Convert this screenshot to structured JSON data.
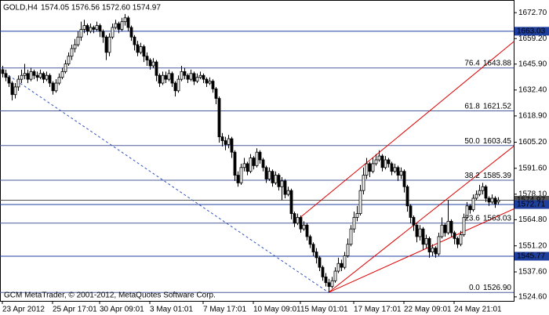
{
  "chart_data": {
    "type": "candlestick",
    "title": "GOLD,H4",
    "subtitle": "1574.05 1576.56 1572.60 1574.97",
    "footer": "GCM MetaTrader, © 2001-2012, MetaQuotes Software Corp.",
    "ylim": [
      1522.5,
      1679.3
    ],
    "yticks": [
      {
        "value": 1672.7,
        "label": "1672.70"
      },
      {
        "value": 1659.2,
        "label": "1659.20"
      },
      {
        "value": 1645.9,
        "label": "1645.90"
      },
      {
        "value": 1632.4,
        "label": "1632.40"
      },
      {
        "value": 1618.9,
        "label": "1618.90"
      },
      {
        "value": 1605.2,
        "label": "1605.20"
      },
      {
        "value": 1591.6,
        "label": "1591.60"
      },
      {
        "value": 1578.1,
        "label": "1578.10"
      },
      {
        "value": 1564.8,
        "label": "1564.80"
      },
      {
        "value": 1551.2,
        "label": "1551.20"
      },
      {
        "value": 1537.6,
        "label": "1537.60"
      },
      {
        "value": 1524.6,
        "label": "1524.60"
      }
    ],
    "xlabels": [
      {
        "index": 0,
        "label": "23 Apr 2012"
      },
      {
        "index": 16,
        "label": "25 Apr 17:01"
      },
      {
        "index": 31,
        "label": "30 Apr 09:01"
      },
      {
        "index": 47,
        "label": "3 May 01:01"
      },
      {
        "index": 64,
        "label": "7 May 17:01"
      },
      {
        "index": 80,
        "label": "10 May 09:01"
      },
      {
        "index": 95,
        "label": "15 May 01:01"
      },
      {
        "index": 112,
        "label": "17 May 17:01"
      },
      {
        "index": 128,
        "label": "22 May 09:01"
      },
      {
        "index": 144,
        "label": "24 May 21:01"
      }
    ],
    "up_color": "#ffffff",
    "down_color": "#000000",
    "ohlc": [
      [
        1643,
        1645,
        1639,
        1641
      ],
      [
        1641,
        1643,
        1637,
        1639
      ],
      [
        1639,
        1640,
        1634,
        1636
      ],
      [
        1636,
        1637,
        1627,
        1630
      ],
      [
        1630,
        1636,
        1628,
        1634
      ],
      [
        1634,
        1640,
        1632,
        1638
      ],
      [
        1638,
        1643,
        1636,
        1640
      ],
      [
        1640,
        1646,
        1638,
        1641
      ],
      [
        1641,
        1643,
        1636,
        1638
      ],
      [
        1638,
        1644,
        1637,
        1642
      ],
      [
        1642,
        1643,
        1638,
        1640
      ],
      [
        1640,
        1642,
        1637,
        1639
      ],
      [
        1639,
        1643,
        1638,
        1641
      ],
      [
        1641,
        1642,
        1636,
        1638
      ],
      [
        1638,
        1642,
        1637,
        1640
      ],
      [
        1640,
        1641,
        1634,
        1636
      ],
      [
        1636,
        1637,
        1630,
        1632
      ],
      [
        1632,
        1638,
        1631,
        1636
      ],
      [
        1636,
        1641,
        1635,
        1639
      ],
      [
        1639,
        1644,
        1638,
        1642
      ],
      [
        1642,
        1648,
        1641,
        1646
      ],
      [
        1646,
        1652,
        1645,
        1650
      ],
      [
        1650,
        1656,
        1648,
        1654
      ],
      [
        1654,
        1659,
        1652,
        1656
      ],
      [
        1656,
        1663,
        1655,
        1660
      ],
      [
        1660,
        1668,
        1658,
        1664
      ],
      [
        1664,
        1669,
        1662,
        1666
      ],
      [
        1666,
        1667,
        1661,
        1663
      ],
      [
        1663,
        1667,
        1662,
        1665
      ],
      [
        1665,
        1666,
        1662,
        1664
      ],
      [
        1664,
        1668,
        1663,
        1666
      ],
      [
        1666,
        1667,
        1660,
        1663
      ],
      [
        1663,
        1664,
        1657,
        1660
      ],
      [
        1660,
        1661,
        1648,
        1652
      ],
      [
        1652,
        1662,
        1650,
        1660
      ],
      [
        1660,
        1667,
        1659,
        1665
      ],
      [
        1665,
        1669,
        1664,
        1667
      ],
      [
        1667,
        1668,
        1662,
        1664
      ],
      [
        1664,
        1670,
        1663,
        1668
      ],
      [
        1668,
        1672,
        1666,
        1670
      ],
      [
        1670,
        1671,
        1663,
        1665
      ],
      [
        1665,
        1666,
        1658,
        1660
      ],
      [
        1660,
        1661,
        1653,
        1656
      ],
      [
        1656,
        1658,
        1650,
        1652
      ],
      [
        1652,
        1657,
        1651,
        1655
      ],
      [
        1655,
        1656,
        1647,
        1650
      ],
      [
        1650,
        1652,
        1645,
        1648
      ],
      [
        1648,
        1649,
        1643,
        1645
      ],
      [
        1645,
        1649,
        1644,
        1647
      ],
      [
        1647,
        1648,
        1637,
        1640
      ],
      [
        1640,
        1641,
        1634,
        1636
      ],
      [
        1636,
        1642,
        1635,
        1640
      ],
      [
        1640,
        1642,
        1636,
        1638
      ],
      [
        1638,
        1643,
        1637,
        1641
      ],
      [
        1641,
        1642,
        1634,
        1636
      ],
      [
        1636,
        1637,
        1629,
        1632
      ],
      [
        1632,
        1640,
        1631,
        1638
      ],
      [
        1638,
        1645,
        1637,
        1642
      ],
      [
        1642,
        1644,
        1638,
        1640
      ],
      [
        1640,
        1641,
        1636,
        1638
      ],
      [
        1638,
        1643,
        1637,
        1641
      ],
      [
        1641,
        1642,
        1635,
        1637
      ],
      [
        1637,
        1641,
        1636,
        1639
      ],
      [
        1639,
        1642,
        1638,
        1640
      ],
      [
        1640,
        1641,
        1636,
        1638
      ],
      [
        1638,
        1639,
        1634,
        1636
      ],
      [
        1636,
        1639,
        1635,
        1637
      ],
      [
        1637,
        1638,
        1631,
        1633
      ],
      [
        1633,
        1634,
        1625,
        1628
      ],
      [
        1628,
        1629,
        1605,
        1608
      ],
      [
        1608,
        1610,
        1603,
        1606
      ],
      [
        1606,
        1608,
        1601,
        1604
      ],
      [
        1604,
        1609,
        1602,
        1607
      ],
      [
        1607,
        1608,
        1597,
        1600
      ],
      [
        1600,
        1601,
        1585,
        1588
      ],
      [
        1588,
        1590,
        1582,
        1584
      ],
      [
        1584,
        1594,
        1583,
        1592
      ],
      [
        1592,
        1597,
        1590,
        1594
      ],
      [
        1594,
        1595,
        1588,
        1590
      ],
      [
        1590,
        1599,
        1589,
        1597
      ],
      [
        1597,
        1598,
        1591,
        1593
      ],
      [
        1593,
        1602,
        1592,
        1600
      ],
      [
        1600,
        1601,
        1594,
        1596
      ],
      [
        1596,
        1597,
        1590,
        1592
      ],
      [
        1592,
        1593,
        1584,
        1586
      ],
      [
        1586,
        1592,
        1585,
        1590
      ],
      [
        1590,
        1591,
        1582,
        1584
      ],
      [
        1584,
        1590,
        1583,
        1588
      ],
      [
        1588,
        1589,
        1580,
        1582
      ],
      [
        1582,
        1587,
        1575,
        1585
      ],
      [
        1585,
        1586,
        1576,
        1578
      ],
      [
        1578,
        1582,
        1577,
        1580
      ],
      [
        1580,
        1581,
        1565,
        1568
      ],
      [
        1568,
        1569,
        1561,
        1563
      ],
      [
        1563,
        1568,
        1562,
        1566
      ],
      [
        1566,
        1567,
        1558,
        1560
      ],
      [
        1560,
        1564,
        1559,
        1562
      ],
      [
        1562,
        1563,
        1554,
        1556
      ],
      [
        1556,
        1557,
        1550,
        1552
      ],
      [
        1552,
        1553,
        1546,
        1548
      ],
      [
        1548,
        1550,
        1542,
        1545
      ],
      [
        1545,
        1546,
        1538,
        1540
      ],
      [
        1540,
        1541,
        1533,
        1535
      ],
      [
        1535,
        1537,
        1530,
        1532
      ],
      [
        1532,
        1534,
        1526.9,
        1530
      ],
      [
        1530,
        1535,
        1529,
        1533
      ],
      [
        1533,
        1540,
        1532,
        1538
      ],
      [
        1538,
        1545,
        1537,
        1542
      ],
      [
        1542,
        1544,
        1538,
        1540
      ],
      [
        1540,
        1548,
        1539,
        1546
      ],
      [
        1546,
        1555,
        1545,
        1552
      ],
      [
        1552,
        1562,
        1551,
        1560
      ],
      [
        1560,
        1569,
        1558,
        1566
      ],
      [
        1566,
        1572,
        1564,
        1568
      ],
      [
        1568,
        1583,
        1567,
        1580
      ],
      [
        1580,
        1592,
        1578,
        1588
      ],
      [
        1588,
        1597,
        1586,
        1594
      ],
      [
        1594,
        1595,
        1587,
        1590
      ],
      [
        1590,
        1597,
        1589,
        1594
      ],
      [
        1594,
        1599,
        1593,
        1596
      ],
      [
        1596,
        1601,
        1595,
        1598
      ],
      [
        1598,
        1599,
        1590,
        1592
      ],
      [
        1592,
        1598,
        1591,
        1596
      ],
      [
        1596,
        1597,
        1592,
        1594
      ],
      [
        1594,
        1595,
        1588,
        1590
      ],
      [
        1590,
        1594,
        1589,
        1592
      ],
      [
        1592,
        1593,
        1585,
        1588
      ],
      [
        1588,
        1592,
        1586,
        1590
      ],
      [
        1590,
        1591,
        1579,
        1582
      ],
      [
        1582,
        1583,
        1569,
        1572
      ],
      [
        1572,
        1573,
        1563,
        1566
      ],
      [
        1566,
        1567,
        1559,
        1562
      ],
      [
        1562,
        1563,
        1553,
        1556
      ],
      [
        1556,
        1562,
        1554,
        1560
      ],
      [
        1560,
        1561,
        1549,
        1552
      ],
      [
        1552,
        1557,
        1550,
        1555
      ],
      [
        1555,
        1556,
        1545,
        1548
      ],
      [
        1548,
        1552,
        1546,
        1550
      ],
      [
        1550,
        1551,
        1545,
        1547
      ],
      [
        1547,
        1558,
        1546,
        1556
      ],
      [
        1556,
        1566,
        1555,
        1562
      ],
      [
        1562,
        1563,
        1556,
        1558
      ],
      [
        1558,
        1575,
        1557,
        1564
      ],
      [
        1564,
        1565,
        1556,
        1558
      ],
      [
        1558,
        1559,
        1552,
        1555
      ],
      [
        1555,
        1556,
        1550,
        1552
      ],
      [
        1552,
        1559,
        1551,
        1557
      ],
      [
        1557,
        1568,
        1556,
        1566
      ],
      [
        1566,
        1574,
        1565,
        1572
      ],
      [
        1572,
        1573,
        1568,
        1570
      ],
      [
        1570,
        1578,
        1569,
        1576
      ],
      [
        1576,
        1580,
        1575,
        1578
      ],
      [
        1578,
        1583,
        1577,
        1580
      ],
      [
        1580,
        1584,
        1578,
        1582
      ],
      [
        1582,
        1583,
        1574,
        1576
      ],
      [
        1576,
        1577,
        1572,
        1574
      ],
      [
        1574,
        1578,
        1573,
        1576
      ],
      [
        1576,
        1577,
        1571,
        1573
      ],
      [
        1574.05,
        1576.56,
        1572.6,
        1574.97
      ]
    ],
    "fibo_color": "#4a5a9a",
    "fibo_levels": [
      {
        "level": "76.4",
        "price": 1643.88
      },
      {
        "level": "61.8",
        "price": 1621.52
      },
      {
        "level": "50.0",
        "price": 1603.45
      },
      {
        "level": "38.2",
        "price": 1585.39
      },
      {
        "level": "23.6",
        "price": 1563.03
      },
      {
        "level": "0.0",
        "price": {
          "value": 1526.9,
          "label": "1526.90"
        }
      }
    ],
    "price_levels": [
      {
        "value": 1663.03,
        "color": "#1f3f9f"
      },
      {
        "value": 1574.97,
        "color": "#555555"
      },
      {
        "value": 1572.71,
        "color": "#1f3f9f"
      },
      {
        "value": 1545.77,
        "color": "#1f3f9f"
      }
    ],
    "trendlines": [
      {
        "x": [
          94,
          163
        ],
        "y": [
          1564.7,
          1657.6
        ],
        "color": "#e00000",
        "dashed": false
      },
      {
        "x": [
          104,
          163
        ],
        "y": [
          1526.9,
          1603.1
        ],
        "color": "#e00000",
        "dashed": false
      },
      {
        "x": [
          104,
          163
        ],
        "y": [
          1526.9,
          1570.4
        ],
        "color": "#e00000",
        "dashed": false
      },
      {
        "x": [
          2,
          104
        ],
        "y": [
          1640,
          1526.9
        ],
        "color": "#3050c0",
        "dashed": true
      }
    ]
  }
}
